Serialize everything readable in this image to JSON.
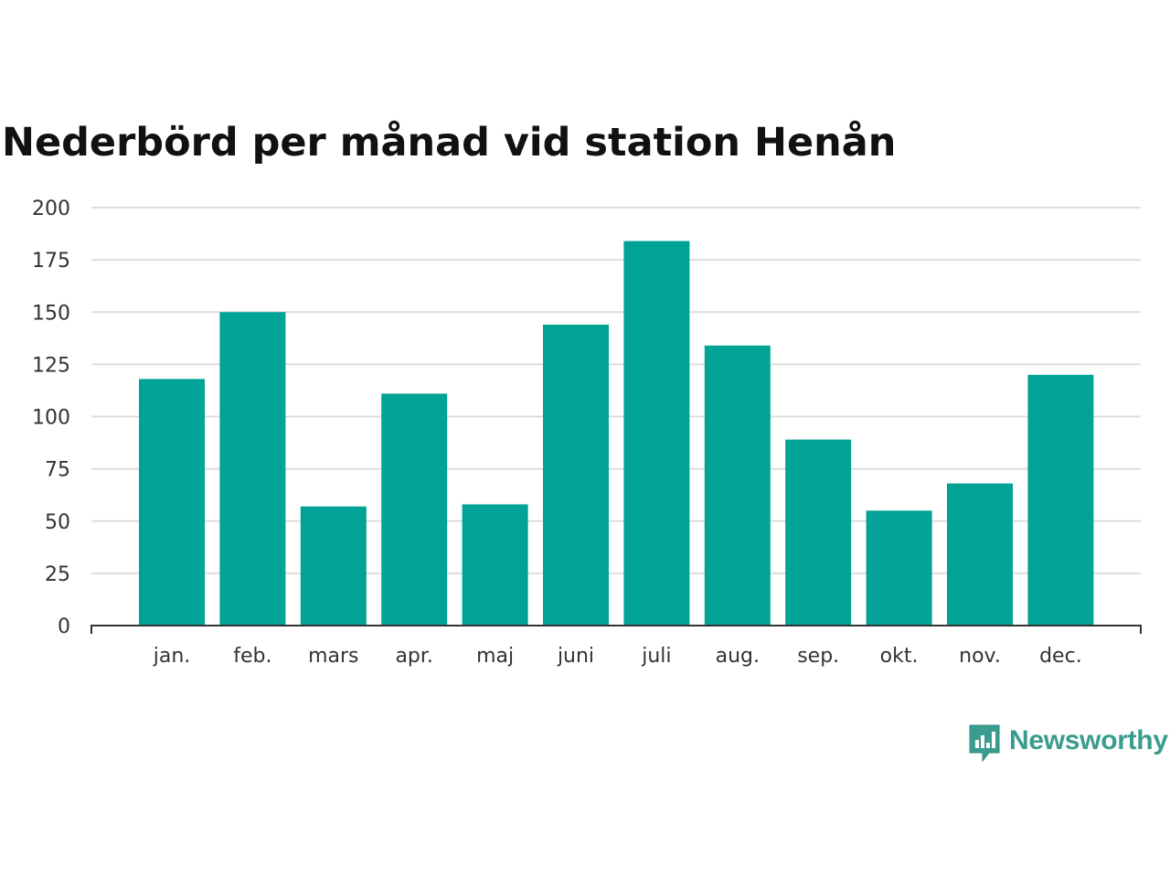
{
  "chart_data": {
    "type": "bar",
    "title": "Nederbörd per månad vid station Henån",
    "categories": [
      "jan.",
      "feb.",
      "mars",
      "apr.",
      "maj",
      "juni",
      "juli",
      "aug.",
      "sep.",
      "okt.",
      "nov.",
      "dec."
    ],
    "values": [
      118,
      150,
      57,
      111,
      58,
      144,
      184,
      134,
      89,
      55,
      68,
      120
    ],
    "ylim": [
      0,
      200
    ],
    "yticks": [
      0,
      25,
      50,
      75,
      100,
      125,
      150,
      175,
      200
    ],
    "xlabel": "",
    "ylabel": "",
    "grid": true,
    "legend": "none",
    "bar_color": "#00a396",
    "grid_color": "#dddddd",
    "axis_color": "#333333"
  },
  "branding": {
    "name": "Newsworthy",
    "color": "#3a9c8f",
    "icon": "newsworthy-chart-bubble-icon"
  }
}
